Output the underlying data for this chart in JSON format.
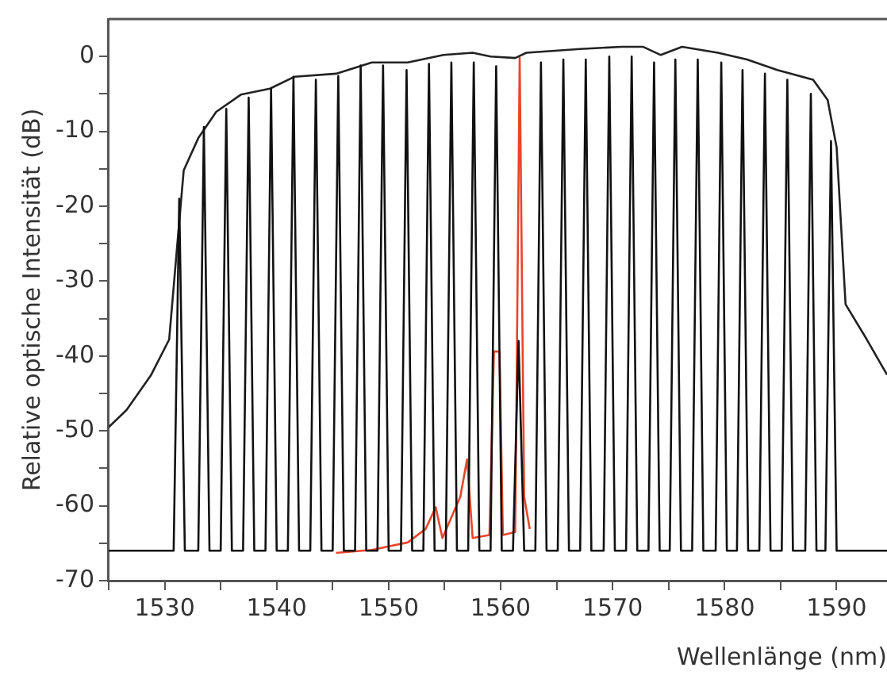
{
  "chart_data": {
    "type": "line",
    "xlabel": "Wellenlänge (nm)",
    "ylabel": "Relative optische Intensität (dB)",
    "xlim": [
      1525,
      1594.5
    ],
    "ylim": [
      -70,
      5
    ],
    "xticks": [
      {
        "value": 1525,
        "label": null
      },
      1530,
      {
        "value": 1535,
        "label": null
      },
      1540,
      {
        "value": 1545,
        "label": null
      },
      1550,
      {
        "value": 1555,
        "label": null
      },
      1560,
      {
        "value": 1565,
        "label": null
      },
      1570,
      {
        "value": 1575,
        "label": null
      },
      1580,
      {
        "value": 1585,
        "label": null
      },
      1590
    ],
    "yticks": [
      -70,
      {
        "value": -65,
        "label": null
      },
      -60,
      {
        "value": -55,
        "label": null
      },
      -50,
      {
        "value": -45,
        "label": null
      },
      -40,
      {
        "value": -35,
        "label": null
      },
      -30,
      {
        "value": -25,
        "label": null
      },
      -20,
      {
        "value": -15,
        "label": null
      },
      -10,
      {
        "value": -5,
        "label": null
      },
      0
    ],
    "grid": false,
    "legend": false,
    "marker": "none",
    "line_style": "solid",
    "series": [
      {
        "color": "#111111",
        "x": [
          1525,
          1530.8,
          1531.3,
          1531.8,
          1533.0,
          1533.5,
          1534.0,
          1535.0,
          1535.5,
          1536.0,
          1537.0,
          1537.5,
          1538.0,
          1539.0,
          1539.5,
          1540.0,
          1541.0,
          1541.5,
          1542.0,
          1543.0,
          1543.5,
          1544.0,
          1545.0,
          1545.5,
          1546.0,
          1547.0,
          1547.5,
          1548.0,
          1549.0,
          1549.5,
          1550.0,
          1551.1,
          1551.6,
          1552.1,
          1553.1,
          1553.6,
          1554.1,
          1555.1,
          1555.6,
          1556.1,
          1557.1,
          1557.6,
          1558.1,
          1559.1,
          1559.6,
          1560.1,
          1561.1,
          1561.6,
          1562.1,
          1563.1,
          1563.6,
          1564.1,
          1565.1,
          1565.6,
          1566.1,
          1567.1,
          1567.6,
          1568.1,
          1569.2,
          1569.7,
          1570.2,
          1571.2,
          1571.7,
          1572.2,
          1573.2,
          1573.7,
          1574.2,
          1575.1,
          1575.6,
          1576.1,
          1577.1,
          1577.6,
          1578.1,
          1579.2,
          1579.7,
          1580.2,
          1581.1,
          1581.6,
          1582.1,
          1583.1,
          1583.6,
          1584.1,
          1585.1,
          1585.6,
          1586.1,
          1587.2,
          1587.7,
          1588.2,
          1589.0,
          1589.5,
          1590.0,
          1594.5
        ],
        "values": [
          -66,
          -66,
          -19,
          -66,
          -66,
          -9.4,
          -66,
          -66,
          -7,
          -66,
          -66,
          -5.5,
          -66,
          -66,
          -4.3,
          -66,
          -66,
          -2.7,
          -66,
          -66,
          -3.1,
          -66,
          -66,
          -2.6,
          -66,
          -66,
          -1.2,
          -66,
          -66,
          -1.2,
          -66,
          -66,
          -1.8,
          -66,
          -66,
          -1,
          -66,
          -66,
          -0.8,
          -66,
          -66,
          -0.8,
          -66,
          -66,
          -1.3,
          -66,
          -66,
          -38,
          -66,
          -66,
          -0.8,
          -66,
          -66,
          -0.4,
          -66,
          -66,
          -0.4,
          -66,
          -66,
          0,
          -66,
          -66,
          0,
          -66,
          -66,
          -0.8,
          -66,
          -66,
          -0.4,
          -66,
          -66,
          -0.4,
          -66,
          -66,
          -0.8,
          -66,
          -66,
          -1.8,
          -66,
          -66,
          -2.3,
          -66,
          -66,
          -3.1,
          -66,
          -66,
          -5,
          -66,
          -66,
          -11.3,
          -66,
          -66
        ]
      },
      {
        "color": "#222222",
        "x": [
          1525,
          1526.6,
          1528.8,
          1530.4,
          1531.2,
          1531.7,
          1533.0,
          1534.6,
          1536.8,
          1539.4,
          1541.6,
          1545.3,
          1548.5,
          1551.7,
          1554.9,
          1557.5,
          1559.1,
          1561.3,
          1562.3,
          1567.1,
          1570.8,
          1572.7,
          1574.3,
          1576.2,
          1579.4,
          1582.0,
          1584.7,
          1587.9,
          1589.2,
          1590.0,
          1590.8,
          1592.7,
          1594.5
        ],
        "values": [
          -49.5,
          -47.2,
          -42.5,
          -37.8,
          -23.8,
          -15.2,
          -10.9,
          -7.4,
          -5.1,
          -4.3,
          -2.7,
          -2.3,
          -0.8,
          -0.8,
          0.2,
          0.5,
          0,
          -0.2,
          0.5,
          1,
          1.3,
          1.3,
          0.2,
          1.3,
          0.5,
          -0.4,
          -1.8,
          -3.1,
          -5.8,
          -12.1,
          -33.1,
          -37.8,
          -42.5
        ]
      },
      {
        "color": "#e8452a",
        "x": [
          1545.3,
          1548.5,
          1551.7,
          1553.3,
          1554.2,
          1554.8,
          1556.4,
          1557.0,
          1557.5,
          1559.0,
          1559.4,
          1559.9,
          1560.2,
          1561.3,
          1561.7,
          1562.1,
          1562.6
        ],
        "values": [
          -66.3,
          -65.9,
          -64.9,
          -63.1,
          -60.2,
          -64.3,
          -58.8,
          -53.8,
          -64.3,
          -63.9,
          -39.4,
          -39.4,
          -63.9,
          -63.5,
          -0.2,
          -58.8,
          -63.1
        ]
      }
    ]
  }
}
